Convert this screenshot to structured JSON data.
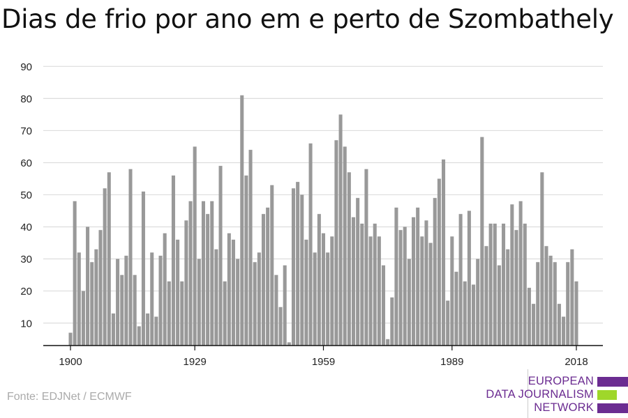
{
  "chart_data": {
    "type": "bar",
    "title": "Dias de frio por ano em e perto de Szombathely",
    "xlabel": "",
    "ylabel": "",
    "x": [
      1900,
      1901,
      1902,
      1903,
      1904,
      1905,
      1906,
      1907,
      1908,
      1909,
      1910,
      1911,
      1912,
      1913,
      1914,
      1915,
      1916,
      1917,
      1918,
      1919,
      1920,
      1921,
      1922,
      1923,
      1924,
      1925,
      1926,
      1927,
      1928,
      1929,
      1930,
      1931,
      1932,
      1933,
      1934,
      1935,
      1936,
      1937,
      1938,
      1939,
      1940,
      1941,
      1942,
      1943,
      1944,
      1945,
      1946,
      1947,
      1948,
      1949,
      1950,
      1951,
      1952,
      1953,
      1954,
      1955,
      1956,
      1957,
      1958,
      1959,
      1960,
      1961,
      1962,
      1963,
      1964,
      1965,
      1966,
      1967,
      1968,
      1969,
      1970,
      1971,
      1972,
      1973,
      1974,
      1975,
      1976,
      1977,
      1978,
      1979,
      1980,
      1981,
      1982,
      1983,
      1984,
      1985,
      1986,
      1987,
      1988,
      1989,
      1990,
      1991,
      1992,
      1993,
      1994,
      1995,
      1996,
      1997,
      1998,
      1999,
      2000,
      2001,
      2002,
      2003,
      2004,
      2005,
      2006,
      2007,
      2008,
      2009,
      2010,
      2011,
      2012,
      2013,
      2014,
      2015,
      2016,
      2017,
      2018
    ],
    "values": [
      7,
      48,
      32,
      20,
      40,
      29,
      33,
      39,
      52,
      57,
      13,
      30,
      25,
      31,
      58,
      25,
      9,
      51,
      13,
      32,
      12,
      31,
      38,
      23,
      56,
      36,
      23,
      42,
      48,
      65,
      30,
      48,
      44,
      48,
      33,
      59,
      23,
      38,
      36,
      30,
      81,
      56,
      64,
      29,
      32,
      44,
      46,
      53,
      25,
      15,
      28,
      4,
      52,
      54,
      50,
      36,
      66,
      32,
      44,
      38,
      32,
      37,
      67,
      75,
      65,
      57,
      43,
      49,
      41,
      58,
      37,
      41,
      37,
      28,
      5,
      18,
      46,
      39,
      40,
      30,
      43,
      46,
      37,
      42,
      35,
      49,
      55,
      61,
      17,
      37,
      26,
      44,
      23,
      45,
      22,
      30,
      68,
      34,
      41,
      41,
      28,
      41,
      33,
      47,
      39,
      48,
      41,
      21,
      16,
      29,
      57,
      34,
      31,
      29,
      16,
      12,
      29,
      33,
      23
    ],
    "xticks": [
      "1900",
      "1929",
      "1959",
      "1989",
      "2018"
    ],
    "yticks": [
      10,
      20,
      30,
      40,
      50,
      60,
      70,
      80,
      90
    ],
    "ylim": [
      3,
      93
    ],
    "grid": true,
    "bar_color": "#999999",
    "grid_color": "#dddddd"
  },
  "source": "Fonte: EDJNet / ECMWF",
  "logo": {
    "lines": [
      "EUROPEAN",
      "DATA JOURNALISM",
      "NETWORK"
    ],
    "colors": {
      "purple": "#6b2c91",
      "green": "#9fd72a"
    }
  }
}
